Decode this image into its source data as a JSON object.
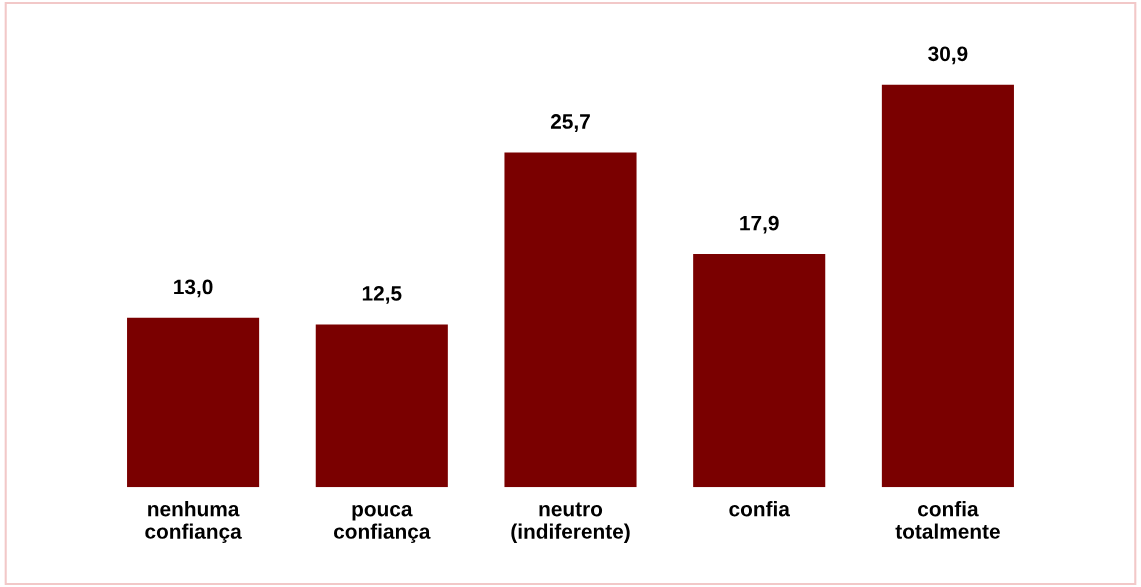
{
  "chart_data": {
    "type": "bar",
    "categories": [
      "nenhuma\nconfiança",
      "pouca\nconfiança",
      "neutro\n(indiferente)",
      "confia",
      "confia\ntotalmente"
    ],
    "values": [
      13.0,
      12.5,
      25.7,
      17.9,
      30.9
    ],
    "value_labels": [
      "13,0",
      "12,5",
      "25,7",
      "17,9",
      "30,9"
    ],
    "color": "#7a0000",
    "grid": false
  }
}
